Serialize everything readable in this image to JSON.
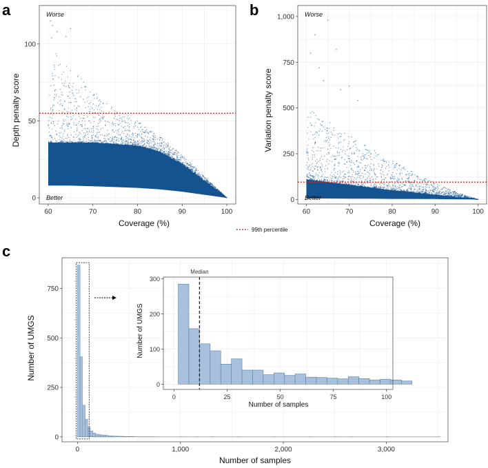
{
  "colors": {
    "points": "#0d4c8c",
    "threshold": "#e0301e",
    "bar_fill": "#a7c1dc",
    "bar_stroke": "#5b7fa3",
    "grid": "#ebebeb",
    "frame": "#555555"
  },
  "legend": {
    "label": "99th percentile"
  },
  "chart_data": [
    {
      "id": "a",
      "panel_label": "a",
      "type": "scatter",
      "xlabel": "Coverage (%)",
      "ylabel": "Depth penalty score",
      "xlim": [
        58,
        102
      ],
      "ylim": [
        -4,
        125
      ],
      "xticks": [
        60,
        70,
        80,
        90,
        100
      ],
      "xtick_labels": [
        "60",
        "70",
        "80",
        "90",
        "100"
      ],
      "yticks": [
        0,
        50,
        100
      ],
      "ytick_labels": [
        "0",
        "50",
        "100"
      ],
      "threshold": 55,
      "annotations": {
        "top": "Worse",
        "bottom": "Better"
      },
      "density_band": {
        "x": [
          60,
          65,
          70,
          75,
          80,
          85,
          90,
          95,
          100
        ],
        "lower": [
          8,
          8,
          7.5,
          7,
          6.5,
          5.5,
          4,
          2,
          0
        ],
        "core_upper": [
          36,
          36,
          36,
          35,
          34,
          30,
          22,
          11,
          0
        ],
        "sparse_upper": [
          100,
          85,
          70,
          58,
          50,
          40,
          28,
          14,
          0
        ]
      },
      "outliers": [
        [
          60.5,
          115
        ],
        [
          61,
          112
        ],
        [
          63,
          118
        ],
        [
          62,
          108
        ],
        [
          64,
          105
        ],
        [
          65,
          110
        ],
        [
          60.8,
          104
        ]
      ]
    },
    {
      "id": "b",
      "panel_label": "b",
      "type": "scatter",
      "xlabel": "Coverage (%)",
      "ylabel": "Variation penalty score",
      "xlim": [
        58,
        102
      ],
      "ylim": [
        -25,
        1060
      ],
      "xticks": [
        60,
        70,
        80,
        90,
        100
      ],
      "xtick_labels": [
        "60",
        "70",
        "80",
        "90",
        "100"
      ],
      "yticks": [
        0,
        250,
        500,
        750,
        1000
      ],
      "ytick_labels": [
        "0",
        "250",
        "500",
        "750",
        "1,000"
      ],
      "threshold": 95,
      "annotations": {
        "top": "Worse",
        "bottom": "Better"
      },
      "density_band": {
        "x": [
          60,
          65,
          70,
          75,
          80,
          85,
          90,
          95,
          100
        ],
        "lower": [
          5,
          5,
          4,
          4,
          3,
          3,
          2,
          1,
          0
        ],
        "core_upper": [
          110,
          95,
          80,
          65,
          50,
          38,
          25,
          12,
          0
        ],
        "sparse_upper": [
          500,
          430,
          350,
          280,
          210,
          150,
          90,
          40,
          0
        ]
      },
      "outliers": [
        [
          61,
          800
        ],
        [
          63,
          720
        ],
        [
          65,
          980
        ],
        [
          64,
          650
        ],
        [
          68,
          600
        ],
        [
          70,
          620
        ],
        [
          62,
          900
        ],
        [
          72,
          540
        ],
        [
          67,
          820
        ]
      ]
    },
    {
      "id": "c",
      "panel_label": "c",
      "type": "bar",
      "xlabel": "Number of samples",
      "ylabel": "Number of UMGS",
      "xlim": [
        -150,
        3600
      ],
      "ylim": [
        -25,
        905
      ],
      "xticks": [
        0,
        1000,
        2000,
        3000
      ],
      "xtick_labels": [
        "0",
        "1,000",
        "2,000",
        "3,000"
      ],
      "yticks": [
        0,
        250,
        500,
        750
      ],
      "ytick_labels": [
        "0",
        "250",
        "500",
        "750"
      ],
      "bin_width": 25,
      "values": [
        868,
        405,
        160,
        90,
        50,
        30,
        20,
        14,
        12,
        10,
        9,
        8,
        6,
        5,
        4,
        4,
        3,
        3,
        2,
        2,
        2,
        2,
        1,
        1,
        1,
        1,
        1,
        1,
        1,
        1
      ],
      "rare_bins": [
        1000,
        1150,
        1300,
        1550,
        1900,
        2250,
        2500,
        2650,
        3000,
        3500
      ],
      "zoom_box": {
        "x": [
          0,
          100
        ],
        "y": [
          0,
          870
        ]
      }
    },
    {
      "id": "c_inset",
      "type": "bar",
      "xlabel": "Number of samples",
      "ylabel": "Number of UMGS",
      "xlim": [
        -5,
        103
      ],
      "ylim": [
        -15,
        305
      ],
      "xticks": [
        0,
        25,
        50,
        75,
        100
      ],
      "xtick_labels": [
        "0",
        "25",
        "50",
        "75",
        "100"
      ],
      "yticks": [
        0,
        100,
        200,
        300
      ],
      "ytick_labels": [
        "0",
        "100",
        "200",
        "300"
      ],
      "bin_start": 2,
      "bin_width": 5,
      "values": [
        285,
        158,
        115,
        95,
        57,
        72,
        40,
        40,
        27,
        32,
        25,
        29,
        20,
        19,
        17,
        15,
        21,
        16,
        12,
        14,
        12,
        9
      ],
      "median": 12,
      "median_label": "Median"
    }
  ]
}
